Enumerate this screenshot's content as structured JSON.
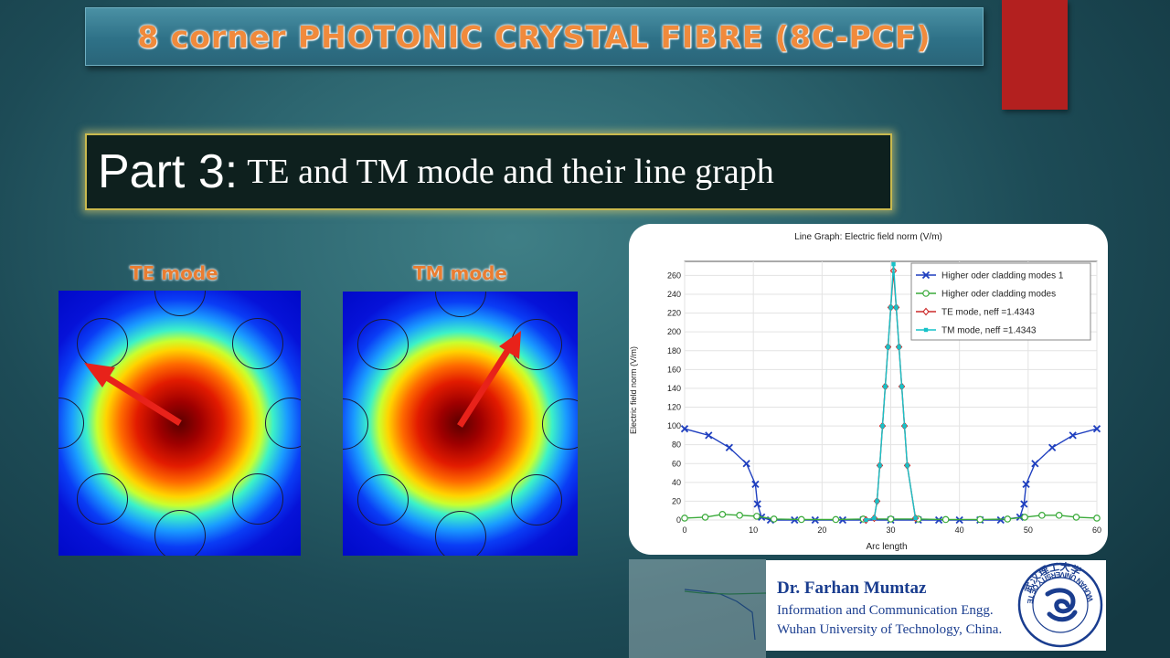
{
  "title": "8 corner PHOTONIC CRYSTAL FIBRE (8C-PCF)",
  "part": {
    "label": "Part 3:",
    "description": "TE and TM mode and their line graph"
  },
  "modes": {
    "te_label": "TE mode",
    "tm_label": "TM mode"
  },
  "colors": {
    "title_text": "#f08a3c",
    "mode_label": "#e97d32",
    "accent_red": "#b3201f",
    "signature_text": "#1a3d8f",
    "arrow": "#e8221a"
  },
  "chart_data": {
    "type": "line",
    "title": "Line Graph: Electric field norm (V/m)",
    "xlabel": "Arc length",
    "ylabel": "Electric field norm (V/m)",
    "xlim": [
      0,
      60
    ],
    "ylim": [
      0,
      275
    ],
    "xticks": [
      0,
      10,
      20,
      30,
      40,
      50,
      60
    ],
    "yticks": [
      0,
      20,
      40,
      60,
      80,
      100,
      120,
      140,
      160,
      180,
      200,
      220,
      240,
      260
    ],
    "grid": true,
    "legend_position": "top-right",
    "series": [
      {
        "name": "Higher oder cladding modes 1",
        "color": "#1f3fbf",
        "marker": "x",
        "x": [
          0,
          3.5,
          6.5,
          9,
          10.3,
          10.6,
          11.2,
          12.5,
          16,
          19,
          23,
          26,
          30,
          34,
          37,
          40,
          43,
          46,
          48.8,
          49.4,
          49.7,
          51,
          53.5,
          56.5,
          60
        ],
        "y": [
          97,
          90,
          77,
          60,
          38,
          17,
          3,
          0,
          0,
          0,
          0,
          0,
          0,
          0,
          0,
          0,
          0,
          0,
          3,
          17,
          38,
          60,
          77,
          90,
          97
        ]
      },
      {
        "name": "Higher oder cladding modes",
        "color": "#3aaa3a",
        "marker": "o",
        "x": [
          0,
          3,
          5.5,
          8,
          10.5,
          13,
          17,
          22,
          26,
          30,
          34,
          38,
          43,
          47,
          49.5,
          52,
          54.5,
          57,
          60
        ],
        "y": [
          2,
          3,
          6,
          5,
          4,
          1,
          0.5,
          0.5,
          1,
          1,
          1,
          0.5,
          0.5,
          1,
          3,
          5,
          5,
          3,
          2
        ]
      },
      {
        "name": "TE mode, neff =1.4343",
        "color": "#cc2a2a",
        "marker": "d",
        "x": [
          26.4,
          27.6,
          28.0,
          28.4,
          28.8,
          29.2,
          29.6,
          30.0,
          30.4,
          30.8,
          31.2,
          31.6,
          32.0,
          32.4,
          33.6
        ],
        "y": [
          0,
          2,
          20,
          58,
          100,
          142,
          184,
          226,
          265,
          226,
          184,
          142,
          100,
          58,
          2
        ]
      },
      {
        "name": "TM mode, neff =1.4343",
        "color": "#17c2c8",
        "marker": "s",
        "x": [
          26.4,
          27.6,
          28.0,
          28.4,
          28.8,
          29.2,
          29.6,
          30.0,
          30.4,
          30.8,
          31.2,
          31.6,
          32.0,
          32.4,
          33.6
        ],
        "y": [
          0,
          2,
          20,
          58,
          100,
          142,
          184,
          226,
          272,
          226,
          184,
          142,
          100,
          58,
          2
        ]
      }
    ]
  },
  "signature": {
    "name": "Dr. Farhan Mumtaz",
    "line1": "Information and Communication Engg.",
    "line2": "Wuhan University of Technology, China.",
    "logo_text": "WUHAN UNIVERSITY OF TECHNOLOGY",
    "logo_chinese": "武汉理工大学"
  }
}
